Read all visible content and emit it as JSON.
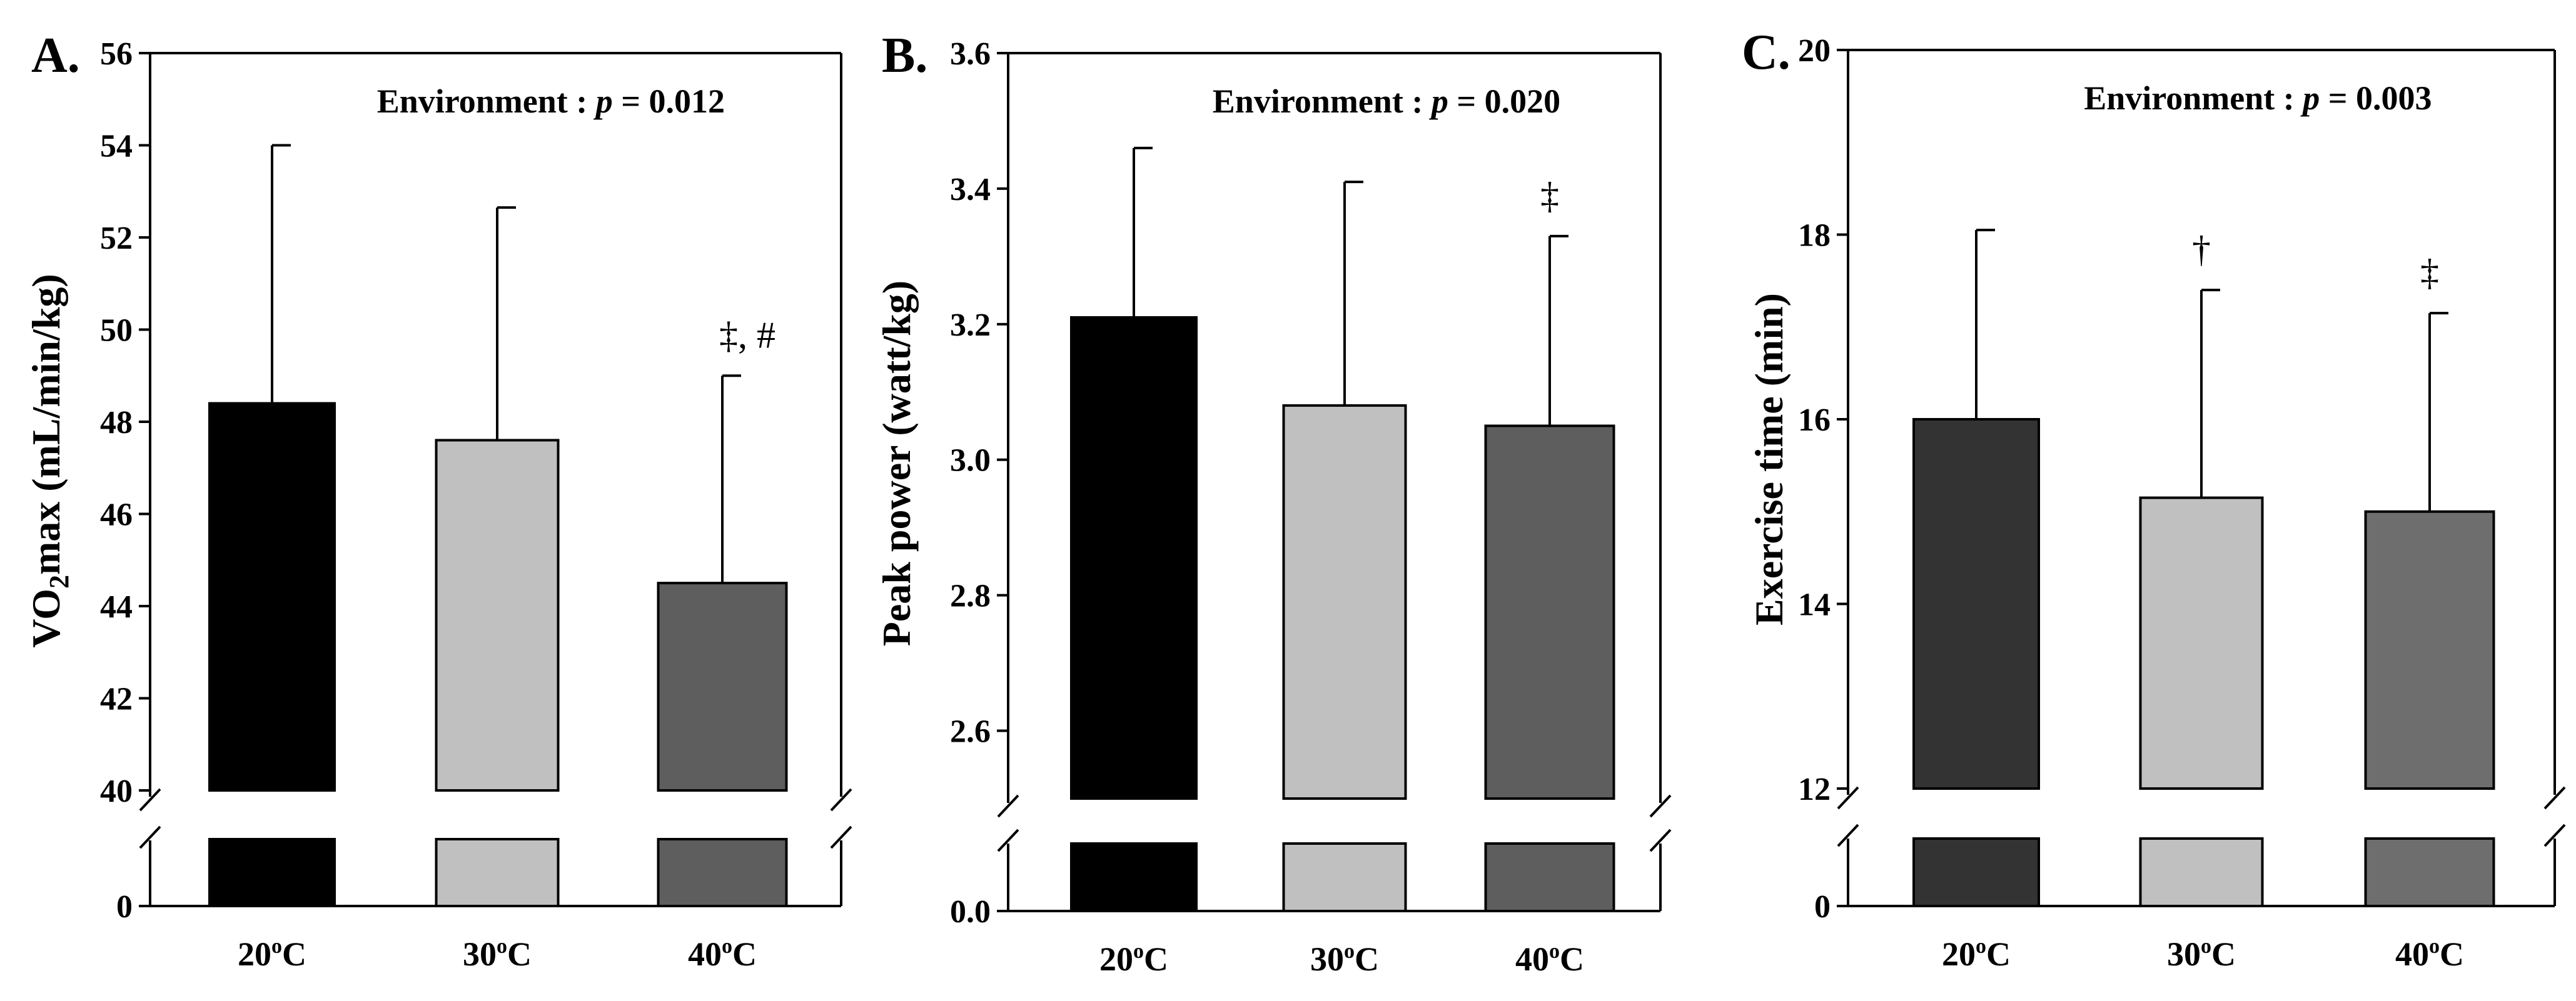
{
  "chart_data": [
    {
      "type": "bar",
      "panel_label": "A.",
      "ylabel_prefix": "VO",
      "ylabel_sub": "2",
      "ylabel_suffix": "max (mL/min/kg)",
      "annotation_prefix": "Environment : ",
      "annotation_p": "p",
      "annotation_value": " = 0.012",
      "categories": [
        "20",
        "30",
        "40"
      ],
      "category_sup": "o",
      "category_unit": "C",
      "values": [
        48.4,
        47.6,
        44.5
      ],
      "errors": [
        5.6,
        5.05,
        4.5
      ],
      "significance": [
        "",
        "",
        "‡, #"
      ],
      "colors": [
        "#000000",
        "#c0c0c0",
        "#5e5e5e"
      ],
      "ylim_upper": [
        40,
        56
      ],
      "yticks_upper": [
        "40",
        "42",
        "44",
        "46",
        "48",
        "50",
        "52",
        "54",
        "56"
      ],
      "ylim_lower": [
        0,
        0
      ],
      "yticks_lower": [
        "0"
      ],
      "axis_break": true
    },
    {
      "type": "bar",
      "panel_label": "B.",
      "ylabel": "Peak power (watt/kg)",
      "annotation_prefix": "Environment : ",
      "annotation_p": "p",
      "annotation_value": " = 0.020",
      "categories": [
        "20",
        "30",
        "40"
      ],
      "category_sup": "o",
      "category_unit": "C",
      "values": [
        3.21,
        3.08,
        3.05
      ],
      "errors": [
        0.25,
        0.33,
        0.28
      ],
      "significance": [
        "",
        "",
        "‡"
      ],
      "colors": [
        "#000000",
        "#c0c0c0",
        "#5e5e5e"
      ],
      "ylim_upper": [
        2.5,
        3.6
      ],
      "yticks_upper": [
        "2.6",
        "2.8",
        "3.0",
        "3.2",
        "3.4",
        "3.6"
      ],
      "ylim_lower": [
        0,
        0
      ],
      "yticks_lower": [
        "0.0"
      ],
      "axis_break": true
    },
    {
      "type": "bar",
      "panel_label": "C.",
      "ylabel": "Exercise time (min)",
      "annotation_prefix": "Environment : ",
      "annotation_p": "p",
      "annotation_value": " = 0.003",
      "categories": [
        "20",
        "30",
        "40"
      ],
      "category_sup": "o",
      "category_unit": "C",
      "values": [
        16.0,
        15.15,
        15.0
      ],
      "errors": [
        2.05,
        2.25,
        2.15
      ],
      "significance": [
        "",
        "†",
        "‡"
      ],
      "colors": [
        "#333333",
        "#c0c0c0",
        "#6e6e6e"
      ],
      "ylim_upper": [
        12,
        20
      ],
      "yticks_upper": [
        "12",
        "14",
        "16",
        "18",
        "20"
      ],
      "ylim_lower": [
        0,
        0
      ],
      "yticks_lower": [
        "0"
      ],
      "axis_break": true
    }
  ]
}
